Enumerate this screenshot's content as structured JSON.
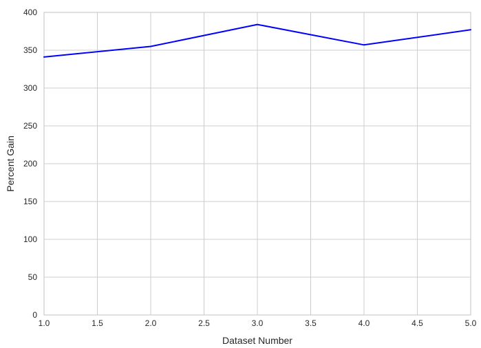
{
  "chart_data": {
    "type": "line",
    "title": "",
    "xlabel": "Dataset Number",
    "ylabel": "Percent Gain",
    "xlim": [
      1.0,
      5.0
    ],
    "ylim": [
      0,
      400
    ],
    "xticks": [
      1.0,
      1.5,
      2.0,
      2.5,
      3.0,
      3.5,
      4.0,
      4.5,
      5.0
    ],
    "xtick_labels": [
      "1.0",
      "1.5",
      "2.0",
      "2.5",
      "3.0",
      "3.5",
      "4.0",
      "4.5",
      "5.0"
    ],
    "yticks": [
      0,
      50,
      100,
      150,
      200,
      250,
      300,
      350,
      400
    ],
    "ytick_labels": [
      "0",
      "50",
      "100",
      "150",
      "200",
      "250",
      "300",
      "350",
      "400"
    ],
    "grid": true,
    "x": [
      1,
      2,
      3,
      4,
      5
    ],
    "series": [
      {
        "values": [
          341,
          355,
          384,
          357,
          377
        ],
        "color": "#0000ff"
      }
    ]
  }
}
